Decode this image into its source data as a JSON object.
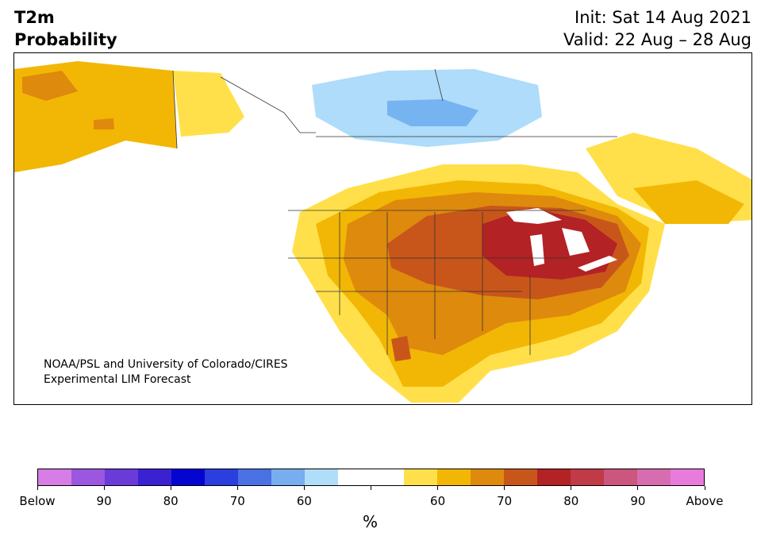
{
  "header": {
    "title_line1": "T2m",
    "title_line2": "Probability",
    "init": "Init: Sat 14 Aug 2021",
    "valid": "Valid: 22 Aug – 28 Aug"
  },
  "map": {
    "credit_line1": "NOAA/PSL and University of Colorado/CIRES",
    "credit_line2": "Experimental LIM Forecast",
    "palette": {
      "below_60": "#aedcfa",
      "below_70": "#75b4f0",
      "above_60": "#ffe04a",
      "above_70": "#f2b705",
      "above_80": "#de8a0d",
      "above_90": "#c8561a",
      "above_max": "#b32224",
      "land": "#ffffff",
      "border": "#333333"
    }
  },
  "colorbar": {
    "colors": [
      "#d67de6",
      "#9b57e0",
      "#6a3bd8",
      "#3a22d2",
      "#0505d2",
      "#2b3ee0",
      "#4a72e4",
      "#76aef0",
      "#b0def9",
      "#ffffff",
      "#ffffff",
      "#ffe04a",
      "#f2b705",
      "#de8a0d",
      "#c8561a",
      "#b32224",
      "#c03a48",
      "#cc567e",
      "#d86cb0",
      "#e97bdc"
    ],
    "labels": [
      "Below",
      "90",
      "80",
      "70",
      "60",
      "",
      "60",
      "70",
      "80",
      "90",
      "Above"
    ],
    "unit": "%"
  }
}
